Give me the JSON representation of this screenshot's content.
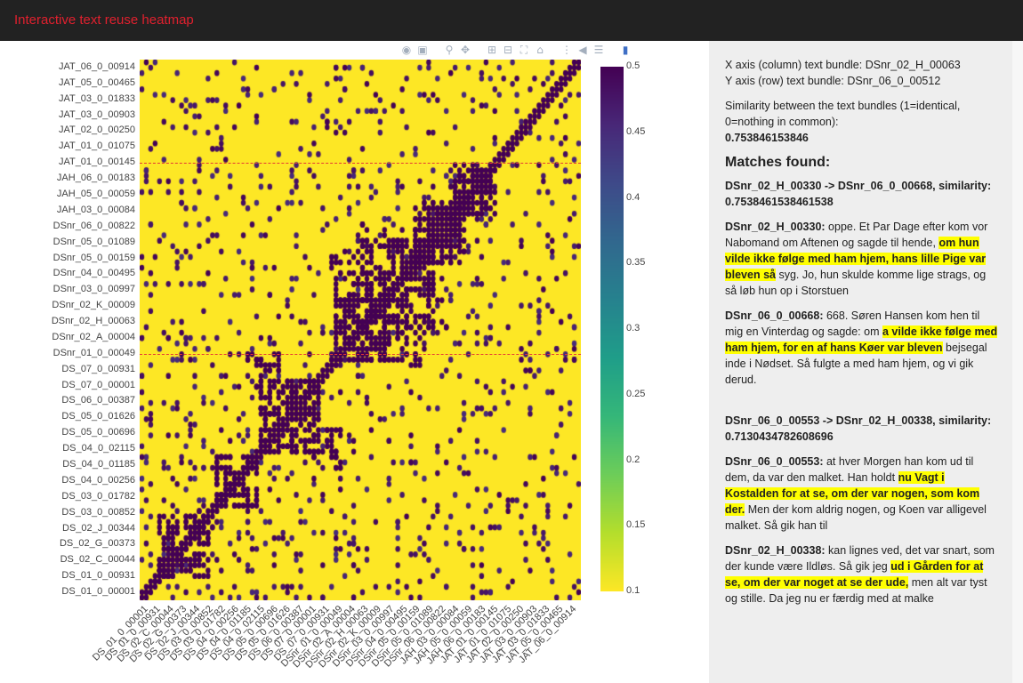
{
  "app": {
    "title": "Interactive text reuse heatmap"
  },
  "modebar": {
    "icons": [
      "camera-icon",
      "save-icon",
      "zoom-icon",
      "pan-icon",
      "zoom-in-icon",
      "zoom-out-icon",
      "autoscale-icon",
      "home-icon",
      "spike-lines-icon",
      "hover-closest-icon",
      "hover-compare-icon",
      "plotly-logo-icon"
    ]
  },
  "colors": {
    "accent": "#e0202e",
    "topbar": "#222222",
    "panel": "#eeeeee",
    "highlight": "#ffff00"
  },
  "chart_data": {
    "type": "heatmap",
    "colorscale": "Viridis (reversed)",
    "zlim": [
      0.1,
      0.5
    ],
    "colorbar_ticks": [
      "0.5",
      "0.45",
      "0.4",
      "0.35",
      "0.3",
      "0.25",
      "0.2",
      "0.15",
      "0.1"
    ],
    "x_tick_labels": [
      "DS_01_0_00001",
      "DS_01_0_00931",
      "DS_02_C_00044",
      "DS_02_G_00373",
      "DS_02_J_00344",
      "DS_03_0_00852",
      "DS_03_0_01782",
      "DS_04_0_00256",
      "DS_04_0_01185",
      "DS_04_0_02115",
      "DS_05_0_00696",
      "DS_05_0_01626",
      "DS_06_0_00387",
      "DS_07_0_00001",
      "DS_07_0_00931",
      "DSnr_01_0_00049",
      "DSnr_02_A_00004",
      "DSnr_02_H_00063",
      "DSnr_02_K_00009",
      "DSnr_03_0_00997",
      "DSnr_04_0_00495",
      "DSnr_05_0_00159",
      "DSnr_05_0_01089",
      "DSnr_06_0_00822",
      "JAH_03_0_00084",
      "JAH_05_0_00059",
      "JAH_06_0_00183",
      "JAT_01_0_00145",
      "JAT_01_0_01075",
      "JAT_02_0_00250",
      "JAT_03_0_00903",
      "JAT_03_0_01833",
      "JAT_05_0_00465",
      "JAT_06_0_00914"
    ],
    "y_tick_labels": [
      "JAT_06_0_00914",
      "JAT_05_0_00465",
      "JAT_03_0_01833",
      "JAT_03_0_00903",
      "JAT_02_0_00250",
      "JAT_01_0_01075",
      "JAT_01_0_00145",
      "JAH_06_0_00183",
      "JAH_05_0_00059",
      "JAH_03_0_00084",
      "DSnr_06_0_00822",
      "DSnr_05_0_01089",
      "DSnr_05_0_00159",
      "DSnr_04_0_00495",
      "DSnr_03_0_00997",
      "DSnr_02_K_00009",
      "DSnr_02_H_00063",
      "DSnr_02_A_00004",
      "DSnr_01_0_00049",
      "DS_07_0_00931",
      "DS_07_0_00001",
      "DS_06_0_00387",
      "DS_05_0_01626",
      "DS_05_0_00696",
      "DS_04_0_02115",
      "DS_04_0_01185",
      "DS_04_0_00256",
      "DS_03_0_01782",
      "DS_03_0_00852",
      "DS_02_J_00344",
      "DS_02_G_00373",
      "DS_02_C_00044",
      "DS_01_0_00931",
      "DS_01_0_00001"
    ],
    "group_divider_rows": [
      "JAT_01_0_00145",
      "DSnr_01_0_00049"
    ],
    "diagonal": "identical (0.5)"
  },
  "side": {
    "x_axis_line": "X axis (column) text bundle: DSnr_02_H_00063",
    "y_axis_line": "Y axis (row) text bundle: DSnr_06_0_00512",
    "similarity_label": "Similarity between the text bundles (1=identical, 0=nothing in common):",
    "similarity_value": "0.753846153846",
    "matches_heading": "Matches found:",
    "match1": {
      "header": "DSnr_02_H_00330 -> DSnr_06_0_00668, similarity: 0.7538461538461538",
      "a_id": "DSnr_02_H_00330:",
      "a_pre": " oppe. Et Par Dage efter kom vor Nabomand om Aftenen og sagde til hende, ",
      "a_hl": "om hun vilde ikke følge med ham hjem, hans lille Pige var bleven så",
      "a_post": " syg. Jo, hun skulde komme lige strags, og så løb hun op i Storstuen",
      "b_id": "DSnr_06_0_00668:",
      "b_pre": " 668. Søren Hansen kom hen til mig en Vinterdag og sagde: om ",
      "b_hl": "a vilde ikke følge med ham hjem, for en af hans Køer var bleven",
      "b_post": " bejsegal inde i Nødset. Så fulgte a med ham hjem, og vi gik derud."
    },
    "match2": {
      "header": "DSnr_06_0_00553 -> DSnr_02_H_00338, similarity: 0.7130434782608696",
      "a_id": "DSnr_06_0_00553:",
      "a_pre": " at hver Morgen han kom ud til dem, da var den malket. Han holdt ",
      "a_hl": "nu Vagt i Kostalden for at se, om der var nogen, som kom der.",
      "a_post": " Men der kom aldrig nogen, og Koen var alligevel malket. Så gik han til",
      "b_id": "DSnr_02_H_00338:",
      "b_pre": " kan lignes ved, det var snart, som der kunde være Ildløs. Så gik jeg ",
      "b_hl": "ud i Gården for at se, om der var noget at se der ude,",
      "b_post": " men alt var tyst og stille. Da jeg nu er færdig med at malke"
    }
  }
}
